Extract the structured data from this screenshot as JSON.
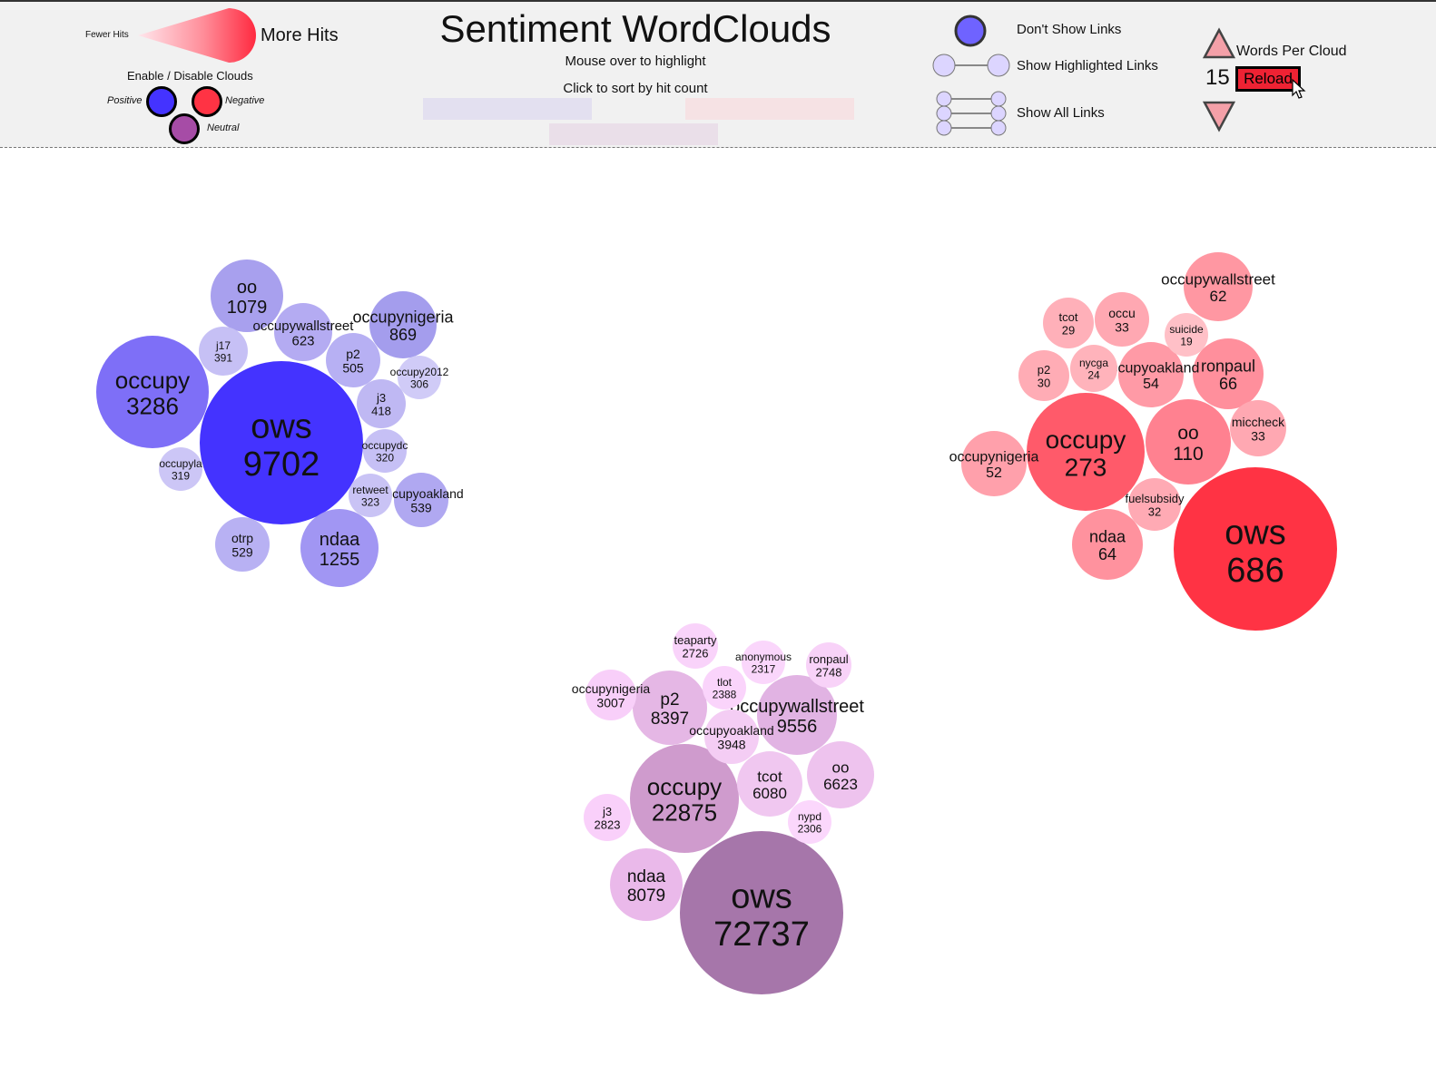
{
  "header": {
    "title": "Sentiment WordClouds",
    "subtitle_highlight": "Mouse over to highlight",
    "subtitle_sort": "Click to sort by hit count"
  },
  "legend": {
    "fewer_hits": "Fewer Hits",
    "more_hits": "More Hits",
    "enable_disable": "Enable / Disable Clouds",
    "positive": "Positive",
    "negative": "Negative",
    "neutral": "Neutral"
  },
  "links": {
    "dont_show": "Don't Show Links",
    "show_highlighted": "Show Highlighted Links",
    "show_all": "Show All Links"
  },
  "controls": {
    "words_per_cloud_label": "Words Per Cloud",
    "words_per_cloud_value": "15",
    "reload_label": "Reload"
  },
  "colors": {
    "positive": "#4433ff",
    "negative": "#ff3344",
    "neutral": "#a676aa",
    "header_bg": "#f1f1f1"
  },
  "clouds": {
    "positive": [
      {
        "word": "ows",
        "count": "9702"
      },
      {
        "word": "occupy",
        "count": "3286"
      },
      {
        "word": "ndaa",
        "count": "1255"
      },
      {
        "word": "oo",
        "count": "1079"
      },
      {
        "word": "occupynigeria",
        "count": "869"
      },
      {
        "word": "occupywallstreet",
        "count": "623"
      },
      {
        "word": "occupyoakland",
        "count": "539"
      },
      {
        "word": "otrp",
        "count": "529"
      },
      {
        "word": "p2",
        "count": "505"
      },
      {
        "word": "j3",
        "count": "418"
      },
      {
        "word": "j17",
        "count": "391"
      },
      {
        "word": "retweet",
        "count": "323"
      },
      {
        "word": "occupydc",
        "count": "320"
      },
      {
        "word": "occupyla",
        "count": "319"
      },
      {
        "word": "occupy2012",
        "count": "306"
      }
    ],
    "negative": [
      {
        "word": "ows",
        "count": "686"
      },
      {
        "word": "occupy",
        "count": "273"
      },
      {
        "word": "oo",
        "count": "110"
      },
      {
        "word": "ronpaul",
        "count": "66"
      },
      {
        "word": "ndaa",
        "count": "64"
      },
      {
        "word": "occupywallstreet",
        "count": "62"
      },
      {
        "word": "occupyoakland",
        "count": "54"
      },
      {
        "word": "occupynigeria",
        "count": "52"
      },
      {
        "word": "occu",
        "count": "33"
      },
      {
        "word": "miccheck",
        "count": "33"
      },
      {
        "word": "fuelsubsidy",
        "count": "32"
      },
      {
        "word": "p2",
        "count": "30"
      },
      {
        "word": "tcot",
        "count": "29"
      },
      {
        "word": "nycga",
        "count": "24"
      },
      {
        "word": "suicide",
        "count": "19"
      }
    ],
    "neutral": [
      {
        "word": "ows",
        "count": "72737"
      },
      {
        "word": "occupy",
        "count": "22875"
      },
      {
        "word": "occupywallstreet",
        "count": "9556"
      },
      {
        "word": "p2",
        "count": "8397"
      },
      {
        "word": "ndaa",
        "count": "8079"
      },
      {
        "word": "oo",
        "count": "6623"
      },
      {
        "word": "tcot",
        "count": "6080"
      },
      {
        "word": "occupyoakland",
        "count": "3948"
      },
      {
        "word": "occupynigeria",
        "count": "3007"
      },
      {
        "word": "j3",
        "count": "2823"
      },
      {
        "word": "ronpaul",
        "count": "2748"
      },
      {
        "word": "teaparty",
        "count": "2726"
      },
      {
        "word": "tlot",
        "count": "2388"
      },
      {
        "word": "anonymous",
        "count": "2317"
      },
      {
        "word": "nypd",
        "count": "2306"
      }
    ]
  }
}
